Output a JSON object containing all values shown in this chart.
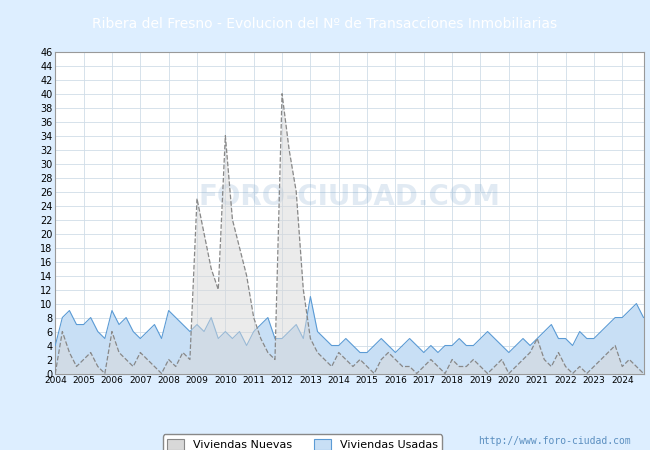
{
  "title": "Ribera del Fresno - Evolucion del Nº de Transacciones Inmobiliarias",
  "title_bg_color": "#4a7fc1",
  "title_text_color": "white",
  "ylim": [
    0,
    46
  ],
  "yticks": [
    0,
    2,
    4,
    6,
    8,
    10,
    12,
    14,
    16,
    18,
    20,
    22,
    24,
    26,
    28,
    30,
    32,
    34,
    36,
    38,
    40,
    42,
    44,
    46
  ],
  "legend_labels": [
    "Viviendas Nuevas",
    "Viviendas Usadas"
  ],
  "usadas_fill": "#c8dff5",
  "usadas_line": "#5b9bd5",
  "nuevas_fill": "#d8d8d8",
  "nuevas_line": "#888888",
  "watermark": "http://www.foro-ciudad.com",
  "watermark_color": "#5b8fc0",
  "grid_color": "#d0dde8",
  "plot_bg_color": "white",
  "outer_bg_color": "#ddeeff",
  "nuevas": [
    0,
    6,
    3,
    1,
    2,
    3,
    1,
    0,
    6,
    3,
    2,
    1,
    3,
    2,
    1,
    0,
    2,
    1,
    3,
    2,
    25,
    20,
    15,
    12,
    34,
    22,
    18,
    14,
    8,
    5,
    3,
    2,
    40,
    32,
    26,
    12,
    5,
    3,
    2,
    1,
    3,
    2,
    1,
    2,
    1,
    0,
    2,
    3,
    2,
    1,
    1,
    0,
    1,
    2,
    1,
    0,
    2,
    1,
    1,
    2,
    1,
    0,
    1,
    2,
    0,
    1,
    2,
    3,
    5,
    2,
    1,
    3,
    1,
    0,
    1,
    0,
    1,
    2,
    3,
    4,
    1,
    2,
    1,
    0,
    0,
    1,
    0
  ],
  "usadas": [
    4,
    8,
    9,
    7,
    7,
    8,
    6,
    5,
    9,
    7,
    8,
    6,
    5,
    6,
    7,
    5,
    9,
    8,
    7,
    6,
    7,
    6,
    8,
    5,
    6,
    5,
    6,
    4,
    6,
    7,
    8,
    5,
    5,
    6,
    7,
    5,
    11,
    6,
    5,
    4,
    4,
    5,
    4,
    3,
    3,
    4,
    5,
    4,
    3,
    4,
    5,
    4,
    3,
    4,
    3,
    4,
    4,
    5,
    4,
    4,
    5,
    6,
    5,
    4,
    3,
    4,
    5,
    4,
    5,
    6,
    7,
    5,
    5,
    4,
    6,
    5,
    5,
    6,
    7,
    8,
    8,
    9,
    10,
    8,
    8,
    9,
    8
  ]
}
